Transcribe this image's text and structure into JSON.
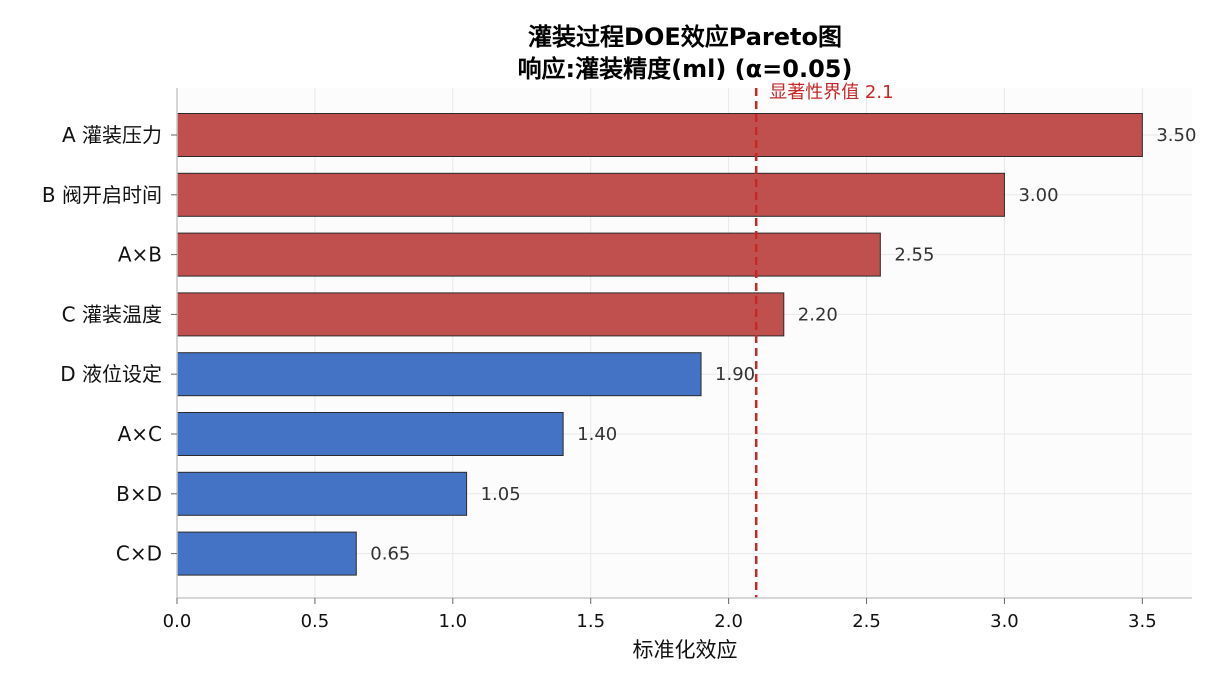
{
  "chart_data": {
    "type": "bar",
    "orientation": "horizontal",
    "title": [
      "灌装过程DOE效应Pareto图",
      "响应:灌装精度(ml)  (α=0.05)"
    ],
    "xlabel": "标准化效应",
    "ylabel": "",
    "categories": [
      "A 灌装压力",
      "B 阀开启时间",
      "A×B",
      "C 灌装温度",
      "D 液位设定",
      "A×C",
      "B×D",
      "C×D"
    ],
    "values": [
      3.5,
      3.0,
      2.55,
      2.2,
      1.9,
      1.4,
      1.05,
      0.65
    ],
    "value_labels": [
      "3.50",
      "3.00",
      "2.55",
      "2.20",
      "1.90",
      "1.40",
      "1.05",
      "0.65"
    ],
    "xlim": [
      0,
      3.68
    ],
    "xticks": [
      0.0,
      0.5,
      1.0,
      1.5,
      2.0,
      2.5,
      3.0,
      3.5
    ],
    "xtick_labels": [
      "0.0",
      "0.5",
      "1.0",
      "1.5",
      "2.0",
      "2.5",
      "3.0",
      "3.5"
    ],
    "grid": true,
    "threshold": {
      "value": 2.1,
      "label": "显著性界值 2.1",
      "color": "#c62828"
    },
    "colors": {
      "significant": "#c0504d",
      "not_significant": "#4472c4",
      "edge": "#2b2b2b",
      "grid": "#e8e8e8",
      "plot_bg": "#fcfcfc"
    }
  }
}
